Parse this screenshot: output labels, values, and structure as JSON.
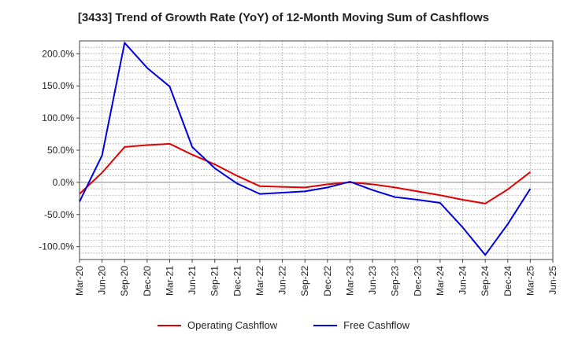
{
  "chart_data": {
    "type": "line",
    "title": "[3433]  Trend of Growth Rate (YoY) of 12-Month Moving Sum of Cashflows",
    "xlabel": "",
    "ylabel": "",
    "x": [
      "Mar-20",
      "Jun-20",
      "Sep-20",
      "Dec-20",
      "Mar-21",
      "Jun-21",
      "Sep-21",
      "Dec-21",
      "Mar-22",
      "Jun-22",
      "Sep-22",
      "Dec-22",
      "Mar-23",
      "Jun-23",
      "Sep-23",
      "Dec-23",
      "Mar-24",
      "Jun-24",
      "Sep-24",
      "Dec-24",
      "Mar-25",
      "Jun-25"
    ],
    "ylim": [
      -120,
      220
    ],
    "yticks": [
      -100,
      -50,
      0,
      50,
      100,
      150,
      200
    ],
    "ytick_labels": [
      "-100.0%",
      "-50.0%",
      "0.0%",
      "50.0%",
      "100.0%",
      "150.0%",
      "200.0%"
    ],
    "grid": true,
    "legend_position": "bottom",
    "series": [
      {
        "name": "Operating Cashflow",
        "color": "#e00000",
        "points": [
          [
            "Mar-20",
            -18
          ],
          [
            "Jun-20",
            15
          ],
          [
            "Sep-20",
            55
          ],
          [
            "Dec-20",
            58
          ],
          [
            "Mar-21",
            60
          ],
          [
            "Jun-21",
            43
          ],
          [
            "Sep-21",
            28
          ],
          [
            "Dec-21",
            10
          ],
          [
            "Mar-22",
            -6
          ],
          [
            "Jun-22",
            -7
          ],
          [
            "Sep-22",
            -8
          ],
          [
            "Dec-22",
            -3
          ],
          [
            "Mar-23",
            0
          ],
          [
            "Jun-23",
            -3
          ],
          [
            "Sep-23",
            -8
          ],
          [
            "Dec-23",
            -14
          ],
          [
            "Mar-24",
            -20
          ],
          [
            "Jun-24",
            -27
          ],
          [
            "Sep-24",
            -33
          ],
          [
            "Dec-24",
            -11
          ],
          [
            "Mar-25",
            16
          ]
        ]
      },
      {
        "name": "Free Cashflow",
        "color": "#0000dd",
        "points": [
          [
            "Mar-20",
            -30
          ],
          [
            "Jun-20",
            42
          ],
          [
            "Sep-20",
            217
          ],
          [
            "Dec-20",
            178
          ],
          [
            "Mar-21",
            149
          ],
          [
            "Jun-21",
            55
          ],
          [
            "Sep-21",
            22
          ],
          [
            "Dec-21",
            -2
          ],
          [
            "Mar-22",
            -18
          ],
          [
            "Jun-22",
            -16
          ],
          [
            "Sep-22",
            -14
          ],
          [
            "Dec-22",
            -8
          ],
          [
            "Mar-23",
            1
          ],
          [
            "Jun-23",
            -12
          ],
          [
            "Sep-23",
            -23
          ],
          [
            "Dec-23",
            -27
          ],
          [
            "Mar-24",
            -32
          ],
          [
            "Jun-24",
            -70
          ],
          [
            "Sep-24",
            -113
          ],
          [
            "Dec-24",
            -65
          ],
          [
            "Mar-25",
            -10
          ]
        ]
      }
    ]
  }
}
